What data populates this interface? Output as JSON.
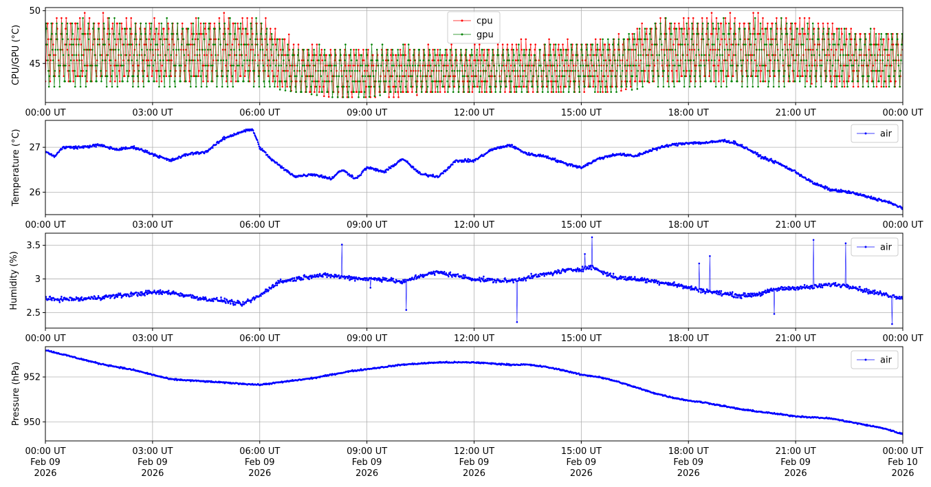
{
  "figure": {
    "x_ticks": [
      "00:00 UT",
      "03:00 UT",
      "06:00 UT",
      "09:00 UT",
      "12:00 UT",
      "15:00 UT",
      "18:00 UT",
      "21:00 UT",
      "00:00 UT"
    ],
    "x_ticks_bottom": [
      [
        "00:00 UT",
        "Feb 09",
        "2026"
      ],
      [
        "03:00 UT",
        "Feb 09",
        "2026"
      ],
      [
        "06:00 UT",
        "Feb 09",
        "2026"
      ],
      [
        "09:00 UT",
        "Feb 09",
        "2026"
      ],
      [
        "12:00 UT",
        "Feb 09",
        "2026"
      ],
      [
        "15:00 UT",
        "Feb 09",
        "2026"
      ],
      [
        "18:00 UT",
        "Feb 09",
        "2026"
      ],
      [
        "21:00 UT",
        "Feb 09",
        "2026"
      ],
      [
        "00:00 UT",
        "Feb 10",
        "2026"
      ]
    ],
    "grid": true
  },
  "chart_data": [
    {
      "type": "line",
      "ylabel": "CPU/GPU (°C)",
      "xlim_hours": [
        0,
        24
      ],
      "ylim": [
        41.3,
        50.3
      ],
      "yticks": [
        45,
        50
      ],
      "legend": "top-center",
      "series": [
        {
          "name": "cpu",
          "color": "#ff0000",
          "hours": [
            0,
            1,
            2,
            3,
            4,
            5,
            6,
            7,
            8,
            9,
            10,
            11,
            12,
            13,
            14,
            15,
            16,
            17,
            18,
            19,
            20,
            21,
            22,
            23,
            24
          ],
          "min": [
            43.3,
            43.3,
            43.3,
            43.3,
            43.3,
            43.3,
            43.3,
            42.3,
            41.8,
            41.8,
            41.8,
            42.3,
            42.3,
            42.3,
            42.3,
            42.3,
            42.3,
            43.3,
            43.3,
            43.3,
            43.3,
            43.3,
            42.8,
            42.8,
            42.8
          ],
          "max": [
            49.8,
            49.8,
            49.8,
            49.3,
            49.3,
            49.8,
            49.8,
            47.3,
            46.8,
            46.8,
            46.8,
            46.8,
            46.8,
            47.3,
            47.3,
            47.3,
            47.8,
            49.3,
            49.8,
            49.8,
            49.8,
            49.8,
            49.3,
            48.3,
            48.3
          ]
        },
        {
          "name": "gpu",
          "color": "#008000",
          "hours": [
            0,
            1,
            2,
            3,
            4,
            5,
            6,
            7,
            8,
            9,
            10,
            11,
            12,
            13,
            14,
            15,
            16,
            17,
            18,
            19,
            20,
            21,
            22,
            23,
            24
          ],
          "min": [
            42.8,
            42.8,
            42.8,
            42.8,
            42.8,
            42.8,
            42.8,
            42.3,
            41.8,
            41.8,
            42.3,
            42.3,
            42.3,
            42.3,
            42.3,
            42.3,
            42.3,
            42.8,
            42.8,
            42.8,
            42.8,
            42.8,
            42.8,
            42.8,
            42.8
          ],
          "max": [
            49.3,
            49.3,
            49.3,
            49.3,
            49.3,
            49.3,
            49.3,
            46.8,
            46.8,
            46.8,
            46.8,
            46.8,
            46.8,
            46.8,
            46.8,
            47.3,
            47.8,
            49.3,
            49.3,
            49.3,
            49.3,
            49.3,
            48.8,
            48.3,
            48.3
          ]
        }
      ]
    },
    {
      "type": "line",
      "ylabel": "Temperature (°C)",
      "xlim_hours": [
        0,
        24
      ],
      "ylim": [
        25.5,
        27.6
      ],
      "yticks": [
        26,
        27
      ],
      "legend": "top-right",
      "series": [
        {
          "name": "air",
          "color": "#0000ff",
          "hours": [
            0,
            0.25,
            0.5,
            1,
            1.5,
            2,
            2.5,
            3,
            3.5,
            4,
            4.5,
            5,
            5.5,
            5.8,
            6,
            6.3,
            6.7,
            7,
            7.5,
            8,
            8.3,
            8.7,
            9,
            9.5,
            10,
            10.5,
            11,
            11.5,
            12,
            12.5,
            13,
            13.5,
            14,
            14.5,
            15,
            15.5,
            16,
            16.5,
            17,
            17.5,
            18,
            18.5,
            19,
            19.3,
            19.7,
            20,
            20.5,
            21,
            21.5,
            22,
            22.5,
            23,
            23.5,
            24
          ],
          "values": [
            26.9,
            26.8,
            27.0,
            27.0,
            27.05,
            26.95,
            27.0,
            26.85,
            26.7,
            26.85,
            26.9,
            27.2,
            27.35,
            27.4,
            27.0,
            26.75,
            26.5,
            26.35,
            26.4,
            26.3,
            26.5,
            26.3,
            26.55,
            26.45,
            26.75,
            26.4,
            26.35,
            26.7,
            26.7,
            26.95,
            27.05,
            26.85,
            26.8,
            26.65,
            26.55,
            26.75,
            26.85,
            26.8,
            26.95,
            27.05,
            27.1,
            27.1,
            27.15,
            27.1,
            26.95,
            26.8,
            26.65,
            26.45,
            26.2,
            26.05,
            26.0,
            25.9,
            25.8,
            25.65
          ]
        }
      ]
    },
    {
      "type": "line",
      "ylabel": "Humidity (%)",
      "xlim_hours": [
        0,
        24
      ],
      "ylim": [
        2.27,
        3.68
      ],
      "yticks": [
        2.5,
        3.0,
        3.5
      ],
      "legend": "top-right",
      "series": [
        {
          "name": "air",
          "color": "#0000ff",
          "hours": [
            0,
            1,
            2,
            3,
            3.5,
            4,
            4.5,
            5,
            5.5,
            6,
            6.5,
            7,
            7.5,
            8,
            8.5,
            9,
            9.5,
            10,
            10.5,
            11,
            11.5,
            12,
            12.5,
            13,
            13.5,
            14,
            14.5,
            15,
            15.3,
            15.6,
            16,
            16.5,
            17,
            17.5,
            18,
            18.5,
            19,
            19.5,
            20,
            20.5,
            21,
            21.5,
            22,
            22.5,
            23,
            23.5,
            24
          ],
          "values": [
            2.7,
            2.7,
            2.75,
            2.8,
            2.8,
            2.75,
            2.7,
            2.68,
            2.62,
            2.75,
            2.95,
            3.0,
            3.05,
            3.05,
            3.02,
            3.0,
            3.0,
            2.95,
            3.05,
            3.1,
            3.05,
            3.0,
            2.98,
            2.97,
            3.02,
            3.07,
            3.12,
            3.15,
            3.18,
            3.1,
            3.02,
            3.0,
            2.97,
            2.93,
            2.87,
            2.82,
            2.78,
            2.75,
            2.78,
            2.85,
            2.87,
            2.88,
            2.92,
            2.9,
            2.82,
            2.77,
            2.72
          ],
          "spikes": [
            [
              8.3,
              3.51
            ],
            [
              9.1,
              2.87
            ],
            [
              10.1,
              2.54
            ],
            [
              13.2,
              2.36
            ],
            [
              15.1,
              3.37
            ],
            [
              15.3,
              3.62
            ],
            [
              18.3,
              3.23
            ],
            [
              18.6,
              3.34
            ],
            [
              20.4,
              2.48
            ],
            [
              21.5,
              3.58
            ],
            [
              22.4,
              3.53
            ],
            [
              23.7,
              2.33
            ]
          ]
        }
      ]
    },
    {
      "type": "line",
      "ylabel": "Pressure (hPa)",
      "xlim_hours": [
        0,
        24
      ],
      "ylim": [
        949.15,
        953.35
      ],
      "yticks": [
        950,
        952
      ],
      "legend": "top-right",
      "series": [
        {
          "name": "air",
          "color": "#0000ff",
          "hours": [
            0,
            0.5,
            1,
            1.5,
            2,
            2.5,
            3,
            3.5,
            4,
            4.5,
            5,
            5.5,
            6,
            6.5,
            7,
            7.5,
            8,
            8.5,
            9,
            9.5,
            10,
            10.5,
            11,
            11.5,
            12,
            12.5,
            13,
            13.5,
            14,
            14.5,
            15,
            15.5,
            16,
            16.5,
            17,
            17.5,
            18,
            18.5,
            19,
            19.5,
            20,
            20.5,
            21,
            21.5,
            22,
            22.5,
            23,
            23.5,
            24
          ],
          "values": [
            953.2,
            953.0,
            952.8,
            952.6,
            952.45,
            952.3,
            952.1,
            951.9,
            951.85,
            951.8,
            951.75,
            951.7,
            951.65,
            951.75,
            951.85,
            951.95,
            952.1,
            952.25,
            952.35,
            952.45,
            952.55,
            952.6,
            952.65,
            952.65,
            952.65,
            952.6,
            952.55,
            952.55,
            952.45,
            952.3,
            952.1,
            952.0,
            951.8,
            951.55,
            951.3,
            951.1,
            950.95,
            950.85,
            950.7,
            950.55,
            950.45,
            950.35,
            950.25,
            950.2,
            950.15,
            950.0,
            949.85,
            949.7,
            949.45
          ]
        }
      ]
    }
  ]
}
